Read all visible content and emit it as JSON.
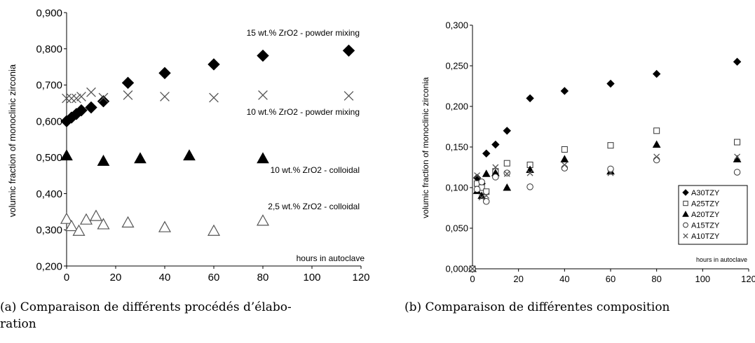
{
  "chart_data": [
    {
      "type": "scatter",
      "caption_line1": "(a) Comparaison de différents procédés d’élabo-",
      "caption_line2": "ration",
      "ylabel": "volumic fraction of monoclinic zirconia",
      "xlabel": "hours in autoclave",
      "xlim": [
        0,
        120
      ],
      "ylim": [
        0.2,
        0.9
      ],
      "x_ticks": [
        "0",
        "20",
        "40",
        "60",
        "80",
        "100",
        "120"
      ],
      "y_ticks": [
        "0,200",
        "0,300",
        "0,400",
        "0,500",
        "0,600",
        "0,700",
        "0,800",
        "0,900"
      ],
      "series": [
        {
          "name": "15 wt.% ZrO2 - powder mixing",
          "marker": "filled-diamond",
          "x": [
            0,
            2,
            4,
            6,
            10,
            15,
            25,
            40,
            60,
            80,
            115
          ],
          "y": [
            0.6,
            0.61,
            0.62,
            0.63,
            0.638,
            0.655,
            0.706,
            0.733,
            0.757,
            0.781,
            0.795
          ]
        },
        {
          "name": "10 wt.% ZrO2 - powder mixing",
          "marker": "x",
          "x": [
            0,
            2,
            4,
            6,
            10,
            15,
            25,
            40,
            60,
            80,
            115
          ],
          "y": [
            0.663,
            0.663,
            0.663,
            0.668,
            0.68,
            0.665,
            0.672,
            0.668,
            0.665,
            0.672,
            0.67
          ]
        },
        {
          "name": "10 wt.% ZrO2 - colloidal",
          "marker": "filled-triangle",
          "x": [
            0,
            15,
            30,
            50,
            80
          ],
          "y": [
            0.505,
            0.49,
            0.497,
            0.505,
            0.497
          ]
        },
        {
          "name": "2,5 wt.% ZrO2 - colloidal",
          "marker": "open-triangle",
          "x": [
            0,
            2,
            5,
            8,
            12,
            15,
            25,
            40,
            60,
            80
          ],
          "y": [
            0.33,
            0.31,
            0.297,
            0.328,
            0.338,
            0.315,
            0.32,
            0.307,
            0.297,
            0.325
          ]
        }
      ]
    },
    {
      "type": "scatter",
      "caption_line1": "(b) Comparaison de différentes composition",
      "ylabel": "volumic fraction of monoclinic zirconia",
      "xlabel": "hours in autoclave",
      "xlim": [
        0,
        120
      ],
      "ylim": [
        0.0,
        0.3
      ],
      "x_ticks": [
        "0",
        "20",
        "40",
        "60",
        "80",
        "100",
        "120"
      ],
      "y_ticks": [
        "0,000",
        "0,050",
        "0,100",
        "0,150",
        "0,200",
        "0,250",
        "0,300"
      ],
      "legend_position": "bottom-right",
      "series": [
        {
          "name": "A30TZY",
          "marker": "filled-diamond",
          "x": [
            0,
            2,
            4,
            6,
            10,
            15,
            25,
            40,
            60,
            80,
            115
          ],
          "y": [
            0.0,
            0.112,
            0.105,
            0.142,
            0.153,
            0.17,
            0.21,
            0.219,
            0.228,
            0.24,
            0.255
          ]
        },
        {
          "name": "A25TZY",
          "marker": "open-square",
          "x": [
            0,
            2,
            4,
            6,
            10,
            15,
            25,
            40,
            60,
            80,
            115
          ],
          "y": [
            0.0,
            0.105,
            0.1,
            0.095,
            0.12,
            0.13,
            0.128,
            0.147,
            0.152,
            0.17,
            0.156
          ]
        },
        {
          "name": "A20TZY",
          "marker": "filled-triangle",
          "x": [
            0,
            2,
            4,
            6,
            10,
            15,
            25,
            40,
            60,
            80,
            115
          ],
          "y": [
            0.0,
            0.096,
            0.09,
            0.117,
            0.118,
            0.1,
            0.122,
            0.135,
            0.12,
            0.153,
            0.135
          ]
        },
        {
          "name": "A15TZY",
          "marker": "open-circle",
          "x": [
            0,
            2,
            4,
            6,
            10,
            15,
            25,
            40,
            60,
            80,
            115
          ],
          "y": [
            0.0,
            0.098,
            0.107,
            0.083,
            0.113,
            0.118,
            0.101,
            0.124,
            0.123,
            0.134,
            0.119
          ]
        },
        {
          "name": "A10TZY",
          "marker": "x",
          "x": [
            0,
            2,
            4,
            6,
            10,
            15,
            25,
            40,
            60,
            80,
            115
          ],
          "y": [
            0.0,
            0.115,
            0.088,
            0.09,
            0.125,
            0.117,
            0.118,
            0.128,
            0.118,
            0.138,
            0.138
          ]
        }
      ]
    }
  ]
}
